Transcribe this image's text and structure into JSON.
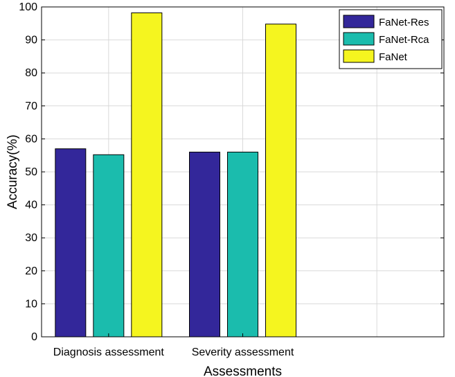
{
  "chart_data": {
    "type": "bar",
    "title": "",
    "xlabel": "Assessments",
    "ylabel": "Accuracy(%)",
    "ylim": [
      0,
      100
    ],
    "yticks": [
      0,
      10,
      20,
      30,
      40,
      50,
      60,
      70,
      80,
      90,
      100
    ],
    "categories": [
      "Diagnosis assessment",
      "Severity assessment"
    ],
    "grid": true,
    "legend_position": "top-right",
    "series": [
      {
        "name": "FaNet-Res",
        "color": "#33279a",
        "values": [
          57,
          56
        ]
      },
      {
        "name": "FaNet-Rca",
        "color": "#1bbcad",
        "values": [
          55.2,
          56
        ]
      },
      {
        "name": "FaNet",
        "color": "#f5f51f",
        "values": [
          98.2,
          94.8
        ]
      }
    ]
  }
}
